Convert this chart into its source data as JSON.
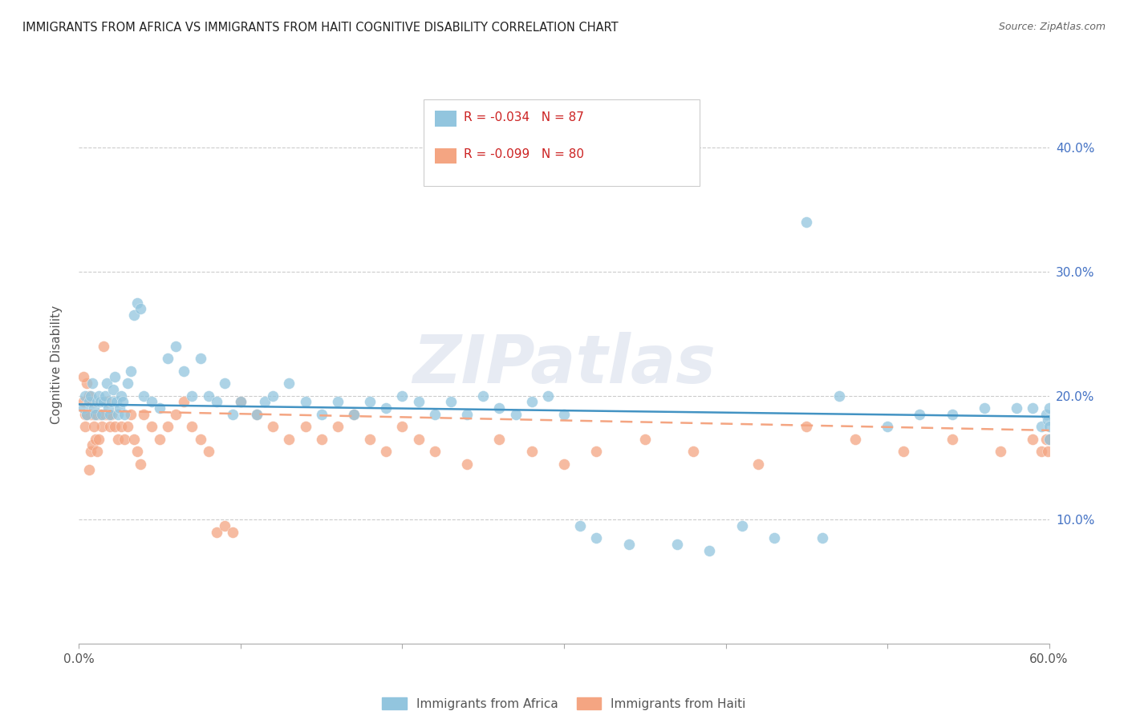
{
  "title": "IMMIGRANTS FROM AFRICA VS IMMIGRANTS FROM HAITI COGNITIVE DISABILITY CORRELATION CHART",
  "source": "Source: ZipAtlas.com",
  "ylabel": "Cognitive Disability",
  "xlim": [
    0.0,
    0.6
  ],
  "ylim": [
    0.0,
    0.45
  ],
  "ytick_vals": [
    0.1,
    0.2,
    0.3,
    0.4
  ],
  "ytick_labels": [
    "10.0%",
    "20.0%",
    "30.0%",
    "40.0%"
  ],
  "xtick_vals": [
    0.0,
    0.1,
    0.2,
    0.3,
    0.4,
    0.5,
    0.6
  ],
  "xtick_labels": [
    "0.0%",
    "",
    "",
    "",
    "",
    "",
    "60.0%"
  ],
  "africa_color": "#92c5de",
  "africa_line_color": "#4393c3",
  "haiti_color": "#f4a582",
  "haiti_line_color": "#f4a582",
  "africa_R": "-0.034",
  "africa_N": "87",
  "haiti_R": "-0.099",
  "haiti_N": "80",
  "watermark": "ZIPatlas",
  "legend_label_africa": "Immigrants from Africa",
  "legend_label_haiti": "Immigrants from Haiti",
  "africa_trendline_start_y": 0.193,
  "africa_trendline_end_y": 0.183,
  "haiti_trendline_start_y": 0.188,
  "haiti_trendline_end_y": 0.172,
  "africa_x": [
    0.003,
    0.004,
    0.005,
    0.006,
    0.007,
    0.008,
    0.009,
    0.01,
    0.011,
    0.012,
    0.013,
    0.014,
    0.015,
    0.016,
    0.017,
    0.018,
    0.019,
    0.02,
    0.021,
    0.022,
    0.023,
    0.024,
    0.025,
    0.026,
    0.027,
    0.028,
    0.03,
    0.032,
    0.034,
    0.036,
    0.038,
    0.04,
    0.045,
    0.05,
    0.055,
    0.06,
    0.065,
    0.07,
    0.075,
    0.08,
    0.085,
    0.09,
    0.095,
    0.1,
    0.11,
    0.115,
    0.12,
    0.13,
    0.14,
    0.15,
    0.16,
    0.17,
    0.18,
    0.19,
    0.2,
    0.21,
    0.22,
    0.23,
    0.24,
    0.25,
    0.26,
    0.27,
    0.28,
    0.29,
    0.3,
    0.31,
    0.32,
    0.34,
    0.37,
    0.39,
    0.41,
    0.43,
    0.45,
    0.46,
    0.47,
    0.5,
    0.52,
    0.54,
    0.56,
    0.58,
    0.59,
    0.595,
    0.598,
    0.599,
    0.6,
    0.6,
    0.6
  ],
  "africa_y": [
    0.19,
    0.2,
    0.185,
    0.195,
    0.2,
    0.21,
    0.19,
    0.185,
    0.195,
    0.2,
    0.195,
    0.185,
    0.195,
    0.2,
    0.21,
    0.19,
    0.185,
    0.195,
    0.205,
    0.215,
    0.195,
    0.185,
    0.19,
    0.2,
    0.195,
    0.185,
    0.21,
    0.22,
    0.265,
    0.275,
    0.27,
    0.2,
    0.195,
    0.19,
    0.23,
    0.24,
    0.22,
    0.2,
    0.23,
    0.2,
    0.195,
    0.21,
    0.185,
    0.195,
    0.185,
    0.195,
    0.2,
    0.21,
    0.195,
    0.185,
    0.195,
    0.185,
    0.195,
    0.19,
    0.2,
    0.195,
    0.185,
    0.195,
    0.185,
    0.2,
    0.19,
    0.185,
    0.195,
    0.2,
    0.185,
    0.095,
    0.085,
    0.08,
    0.08,
    0.075,
    0.095,
    0.085,
    0.34,
    0.085,
    0.2,
    0.175,
    0.185,
    0.185,
    0.19,
    0.19,
    0.19,
    0.175,
    0.185,
    0.18,
    0.175,
    0.165,
    0.19
  ],
  "haiti_x": [
    0.003,
    0.004,
    0.005,
    0.006,
    0.007,
    0.008,
    0.009,
    0.01,
    0.011,
    0.012,
    0.013,
    0.014,
    0.015,
    0.016,
    0.017,
    0.018,
    0.019,
    0.02,
    0.022,
    0.024,
    0.026,
    0.028,
    0.03,
    0.032,
    0.034,
    0.036,
    0.038,
    0.04,
    0.045,
    0.05,
    0.055,
    0.06,
    0.065,
    0.07,
    0.075,
    0.08,
    0.085,
    0.09,
    0.095,
    0.1,
    0.11,
    0.12,
    0.13,
    0.14,
    0.15,
    0.16,
    0.17,
    0.18,
    0.19,
    0.2,
    0.21,
    0.22,
    0.24,
    0.26,
    0.28,
    0.3,
    0.32,
    0.35,
    0.38,
    0.42,
    0.45,
    0.48,
    0.51,
    0.54,
    0.57,
    0.59,
    0.595,
    0.598,
    0.599,
    0.6,
    0.003,
    0.004,
    0.005,
    0.006,
    0.007,
    0.008,
    0.009,
    0.01,
    0.011,
    0.012
  ],
  "haiti_y": [
    0.195,
    0.185,
    0.21,
    0.2,
    0.185,
    0.195,
    0.185,
    0.195,
    0.185,
    0.195,
    0.185,
    0.175,
    0.24,
    0.185,
    0.195,
    0.185,
    0.175,
    0.185,
    0.175,
    0.165,
    0.175,
    0.165,
    0.175,
    0.185,
    0.165,
    0.155,
    0.145,
    0.185,
    0.175,
    0.165,
    0.175,
    0.185,
    0.195,
    0.175,
    0.165,
    0.155,
    0.09,
    0.095,
    0.09,
    0.195,
    0.185,
    0.175,
    0.165,
    0.175,
    0.165,
    0.175,
    0.185,
    0.165,
    0.155,
    0.175,
    0.165,
    0.155,
    0.145,
    0.165,
    0.155,
    0.145,
    0.155,
    0.165,
    0.155,
    0.145,
    0.175,
    0.165,
    0.155,
    0.165,
    0.155,
    0.165,
    0.155,
    0.165,
    0.155,
    0.165,
    0.215,
    0.175,
    0.185,
    0.14,
    0.155,
    0.16,
    0.175,
    0.165,
    0.155,
    0.165
  ]
}
